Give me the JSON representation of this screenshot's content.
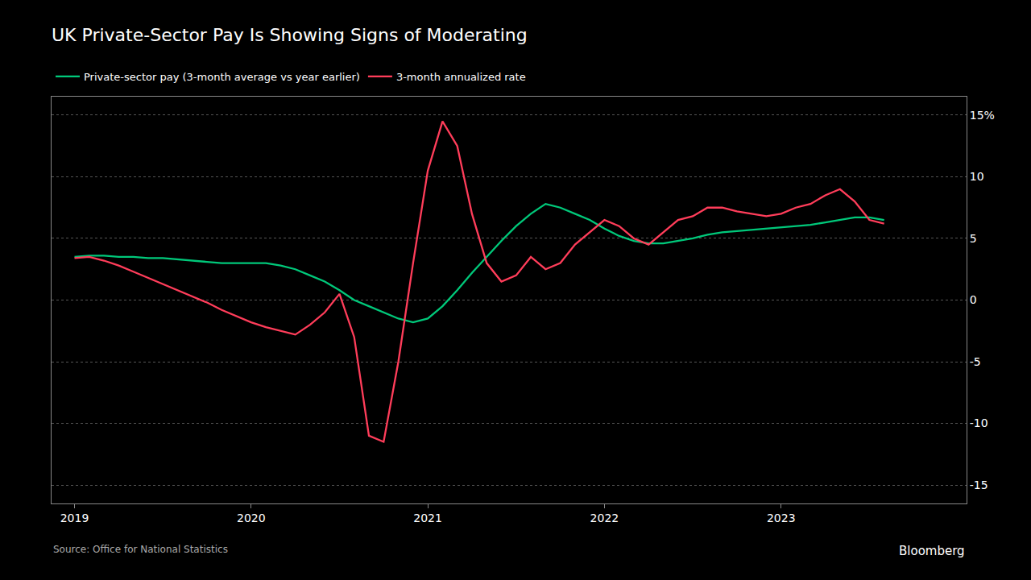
{
  "chart_data": {
    "type": "line",
    "title": "UK Private-Sector Pay Is Showing Signs of Moderating",
    "annotations": [
      "Source: Office for National Statistics",
      "Bloomberg"
    ],
    "x": [
      2019,
      2019.083333,
      2019.166667,
      2019.25,
      2019.333333,
      2019.416667,
      2019.5,
      2019.583333,
      2019.666667,
      2019.75,
      2019.833333,
      2019.916667,
      2020,
      2020.083333,
      2020.166667,
      2020.25,
      2020.333333,
      2020.416667,
      2020.5,
      2020.583333,
      2020.666667,
      2020.75,
      2020.833333,
      2020.916667,
      2021,
      2021.083333,
      2021.166667,
      2021.25,
      2021.333333,
      2021.416667,
      2021.5,
      2021.583333,
      2021.666667,
      2021.75,
      2021.833333,
      2021.916667,
      2022,
      2022.083333,
      2022.166667,
      2022.25,
      2022.333333,
      2022.416667,
      2022.5,
      2022.583333,
      2022.666667,
      2022.75,
      2022.833333,
      2022.916667,
      2023,
      2023.083333,
      2023.166667,
      2023.25,
      2023.333333,
      2023.416667,
      2023.5,
      2023.583333
    ],
    "series": [
      {
        "name": "Private-sector pay (3-month average vs year earlier)",
        "color": "#00c87a",
        "values": [
          3.5,
          3.6,
          3.6,
          3.5,
          3.5,
          3.4,
          3.4,
          3.3,
          3.2,
          3.1,
          3.0,
          3.0,
          3.0,
          3.0,
          2.8,
          2.5,
          2.0,
          1.5,
          0.8,
          0.0,
          -0.5,
          -1.0,
          -1.5,
          -1.8,
          -1.5,
          -0.5,
          0.8,
          2.2,
          3.5,
          4.8,
          6.0,
          7.0,
          7.8,
          7.5,
          7.0,
          6.5,
          5.8,
          5.2,
          4.8,
          4.6,
          4.6,
          4.8,
          5.0,
          5.3,
          5.5,
          5.6,
          5.7,
          5.8,
          5.9,
          6.0,
          6.1,
          6.3,
          6.5,
          6.7,
          6.7,
          6.5
        ]
      },
      {
        "name": "3-month annualized rate",
        "color": "#ff3d5a",
        "values": [
          3.4,
          3.5,
          3.2,
          2.8,
          2.3,
          1.8,
          1.3,
          0.8,
          0.3,
          -0.2,
          -0.8,
          -1.3,
          -1.8,
          -2.2,
          -2.5,
          -2.8,
          -2.0,
          -1.0,
          0.5,
          -3.0,
          -11.0,
          -11.5,
          -5.0,
          3.0,
          10.5,
          14.5,
          12.5,
          7.0,
          3.0,
          1.5,
          2.0,
          3.5,
          2.5,
          3.0,
          4.5,
          5.5,
          6.5,
          6.0,
          5.0,
          4.5,
          5.5,
          6.5,
          6.8,
          7.5,
          7.5,
          7.2,
          7.0,
          6.8,
          7.0,
          7.5,
          7.8,
          8.5,
          9.0,
          8.0,
          6.5,
          6.2
        ]
      }
    ],
    "xlim": [
      2018.87,
      2024.05
    ],
    "xticks": [
      2019,
      2020,
      2021,
      2022,
      2023
    ],
    "ylim": [
      -16.5,
      16.5
    ],
    "yticks": [
      -15,
      -10,
      -5,
      0,
      5,
      10,
      {
        "value": 15,
        "label": "15%"
      }
    ],
    "grid": true,
    "legend": "top left"
  }
}
